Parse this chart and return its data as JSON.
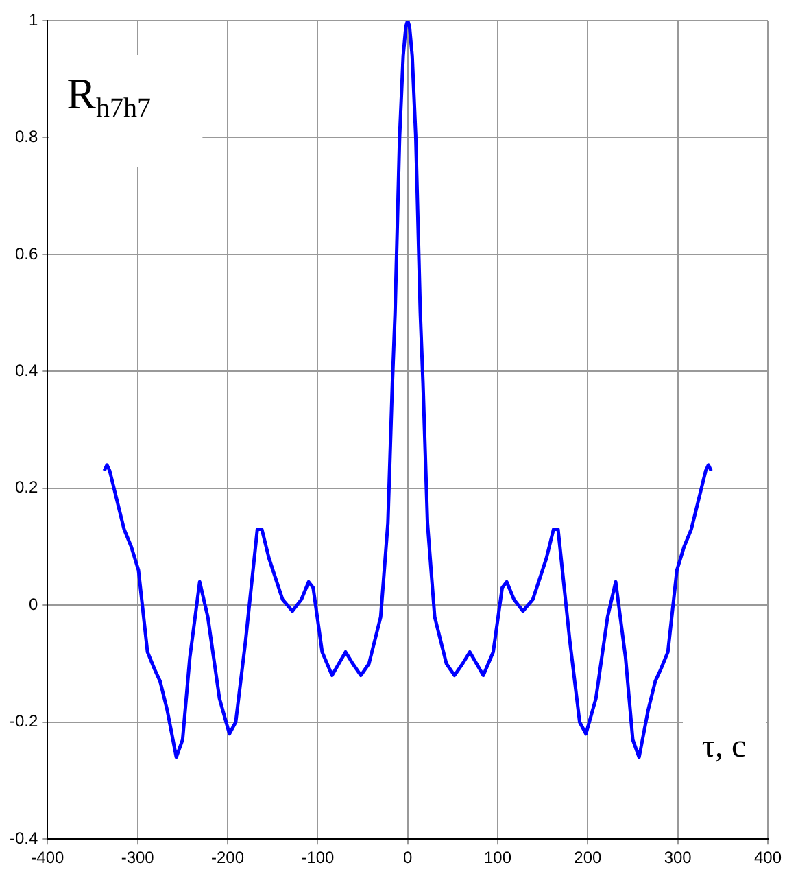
{
  "chart_data": {
    "type": "line",
    "ylabel": "R$_{h7h7}$",
    "xlabel": "τ, c",
    "xlim": [
      -400,
      400
    ],
    "ylim": [
      -0.4,
      1
    ],
    "xticks": [
      -400,
      -300,
      -200,
      -100,
      0,
      100,
      200,
      300,
      400
    ],
    "yticks": [
      -0.4,
      -0.2,
      0,
      0.2,
      0.4,
      0.6,
      0.8,
      1
    ],
    "grid": true,
    "marker": "none",
    "line_style": "solid",
    "series": [
      {
        "color": "#0000ff",
        "x": [
          -337,
          -334,
          -331,
          -323,
          -315,
          -307,
          -299,
          -289,
          -281,
          -275,
          -267,
          -257,
          -250,
          -242,
          -231,
          -222,
          -209,
          -198,
          -191,
          -180,
          -167,
          -162,
          -154,
          -139,
          -128,
          -118,
          -110,
          -105,
          -95,
          -84,
          -69,
          -61,
          -52,
          -43,
          -30,
          -22,
          -17,
          -14,
          -9,
          -5,
          -2,
          0,
          2,
          5,
          9,
          14,
          17,
          22,
          30,
          43,
          52,
          61,
          69,
          84,
          95,
          105,
          110,
          118,
          128,
          139,
          154,
          162,
          167,
          180,
          191,
          198,
          209,
          222,
          231,
          242,
          250,
          257,
          267,
          275,
          281,
          289,
          299,
          307,
          315,
          323,
          331,
          334,
          337
        ],
        "values": [
          0.23,
          0.24,
          0.23,
          0.18,
          0.13,
          0.1,
          0.06,
          -0.08,
          -0.11,
          -0.13,
          -0.18,
          -0.26,
          -0.23,
          -0.09,
          0.04,
          -0.02,
          -0.16,
          -0.22,
          -0.2,
          -0.06,
          0.13,
          0.13,
          0.08,
          0.01,
          -0.01,
          0.01,
          0.04,
          0.03,
          -0.08,
          -0.12,
          -0.08,
          -0.1,
          -0.12,
          -0.1,
          -0.02,
          0.14,
          0.38,
          0.5,
          0.8,
          0.94,
          0.99,
          1,
          0.99,
          0.94,
          0.8,
          0.5,
          0.38,
          0.14,
          -0.02,
          -0.1,
          -0.12,
          -0.1,
          -0.08,
          -0.12,
          -0.08,
          0.03,
          0.04,
          0.01,
          -0.01,
          0.01,
          0.08,
          0.13,
          0.13,
          -0.06,
          -0.2,
          -0.22,
          -0.16,
          -0.02,
          0.04,
          -0.09,
          -0.23,
          -0.26,
          -0.18,
          -0.13,
          -0.11,
          -0.08,
          0.06,
          0.1,
          0.13,
          0.18,
          0.23,
          0.24,
          0.23
        ]
      }
    ]
  }
}
